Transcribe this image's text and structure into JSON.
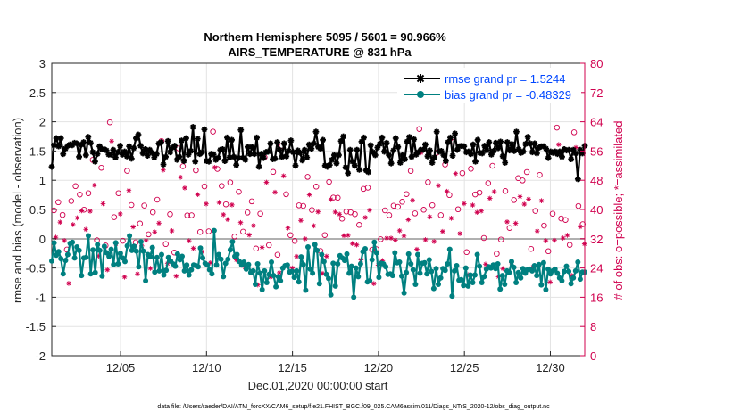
{
  "chart_data": {
    "type": "line",
    "title": "Northern Hemisphere 5095 / 5601 = 90.966%",
    "subtitle": "AIRS_TEMPERATURE @ 831 hPa",
    "xlabel": "Dec.01,2020 00:00:00 start",
    "ylabel": "rmse and bias (model - observation)",
    "y2label": "# of obs: o=possible; *=assimilated",
    "footer": "data file: /Users/raeder/DAI/ATM_forcXX/CAM6_setup/f.e21.FHIST_BGC.f09_025.CAM6assim.011/Diags_NTrS_2020-12/obs_diag_output.nc",
    "xlim": [
      1,
      32
    ],
    "ylim": [
      -2,
      3
    ],
    "y2lim": [
      0,
      80
    ],
    "grid": true,
    "legend_position": "top-right",
    "x_ticks": [
      5,
      10,
      15,
      20,
      25,
      30
    ],
    "x_tick_labels": [
      "12/05",
      "12/10",
      "12/15",
      "12/20",
      "12/25",
      "12/30"
    ],
    "y_ticks": [
      -2,
      -1.5,
      -1,
      -0.5,
      0,
      0.5,
      1,
      1.5,
      2,
      2.5,
      3
    ],
    "y_tick_labels": [
      "-2",
      "-1.5",
      "-1",
      "-0.5",
      "0",
      "0.5",
      "1",
      "1.5",
      "2",
      "2.5",
      "3"
    ],
    "y2_ticks": [
      0,
      8,
      16,
      24,
      32,
      40,
      48,
      56,
      64,
      72,
      80
    ],
    "y2_tick_labels": [
      "0",
      "8",
      "16",
      "24",
      "32",
      "40",
      "48",
      "56",
      "64",
      "72",
      "80"
    ],
    "series": [
      {
        "name": "rmse grand pr = 1.5244",
        "color": "#000000",
        "marker": "star",
        "values": [
          1.23,
          1.6,
          1.72,
          1.58,
          1.72,
          1.45,
          1.54,
          1.59,
          1.61,
          1.6,
          1.64,
          1.63,
          1.4,
          1.61,
          1.65,
          1.43,
          1.74,
          1.64,
          1.48,
          1.32,
          1.45,
          1.58,
          1.53,
          1.53,
          1.51,
          1.44,
          1.44,
          1.52,
          1.39,
          1.48,
          1.59,
          1.44,
          1.49,
          1.41,
          1.58,
          1.37,
          1.55,
          1.72,
          1.78,
          1.59,
          1.46,
          1.53,
          1.42,
          1.52,
          1.47,
          1.39,
          1.45,
          1.63,
          1.65,
          1.27,
          1.4,
          1.67,
          1.48,
          1.56,
          1.59,
          1.35,
          1.4,
          1.68,
          1.33,
          1.72,
          1.44,
          1.5,
          1.91,
          1.32,
          1.71,
          1.45,
          1.48,
          1.87,
          1.33,
          1.32,
          1.45,
          1.44,
          1.35,
          1.38,
          1.52,
          1.53,
          1.33,
          1.73,
          1.39,
          1.69,
          1.4,
          1.26,
          1.38,
          1.86,
          1.38,
          1.35,
          1.57,
          1.45,
          1.57,
          1.45,
          1.73,
          1.23,
          1.45,
          1.38,
          1.48,
          1.49,
          1.63,
          1.36,
          1.37,
          1.65,
          1.52,
          1.4,
          1.63,
          1.41,
          1.5,
          1.68,
          1.48,
          1.25,
          1.51,
          1.47,
          1.34,
          1.52,
          1.39,
          1.61,
          1.54,
          1.63,
          1.83,
          1.57,
          1.54,
          1.69,
          1.25,
          1.23,
          1.26,
          1.35,
          1.43,
          1.29,
          1.43,
          1.67,
          1.75,
          1.22,
          1.12,
          1.52,
          1.32,
          1.25,
          1.52,
          1.18,
          1.66,
          1.73,
          1.17,
          1.14,
          1.6,
          1.48,
          1.43,
          1.56,
          1.62,
          1.73,
          1.49,
          1.64,
          1.43,
          1.29,
          1.51,
          1.72,
          1.57,
          1.3,
          1.43,
          1.36,
          1.66,
          1.74,
          1.4,
          1.7,
          1.44,
          1.48,
          1.52,
          1.52,
          1.61,
          1.41,
          1.51,
          1.3,
          1.39,
          1.83,
          1.49,
          1.5,
          1.43,
          1.33,
          1.65,
          1.73,
          1.42,
          1.8,
          1.52,
          1.58,
          1.59,
          1.58,
          1.48,
          1.49,
          1.45,
          1.61,
          1.32,
          1.69,
          1.47,
          1.46,
          1.59,
          1.51,
          1.65,
          1.44,
          1.5,
          1.64,
          1.55,
          1.66,
          1.41,
          1.3,
          1.65,
          1.51,
          1.62,
          1.5,
          1.83,
          1.53,
          1.47,
          1.49,
          1.62,
          1.74,
          1.63,
          1.48,
          1.63,
          1.46,
          1.56,
          1.58,
          1.58,
          1.54,
          1.38,
          1.49,
          1.47,
          1.49,
          1.45,
          1.49,
          1.4,
          1.53,
          1.51,
          1.52,
          1.36,
          1.52,
          1.46,
          1.02,
          1.52,
          1.46,
          1.59
        ]
      },
      {
        "name": "bias grand pr = -0.48329",
        "color": "#008080",
        "marker": "circle",
        "values": [
          -0.38,
          -0.07,
          -0.28,
          -0.22,
          -0.34,
          -0.6,
          -0.37,
          -0.27,
          -0.08,
          -0.06,
          -0.33,
          -0.14,
          -0.2,
          -0.63,
          -0.33,
          -0.32,
          0.05,
          -0.6,
          -0.19,
          -0.58,
          -0.1,
          -0.2,
          -0.64,
          -0.13,
          -0.24,
          -0.3,
          -0.18,
          -0.44,
          -0.07,
          -0.43,
          -0.25,
          -0.33,
          -0.39,
          -0.12,
          0.05,
          -0.2,
          -0.13,
          -0.21,
          -0.48,
          -0.05,
          -0.21,
          -0.72,
          -0.27,
          -0.31,
          -0.15,
          -0.57,
          -0.32,
          -0.55,
          -0.27,
          -0.62,
          -0.54,
          -0.32,
          -0.38,
          -0.43,
          -0.47,
          -0.26,
          -0.36,
          -0.3,
          -0.55,
          -0.45,
          -0.62,
          -0.53,
          -0.45,
          -0.46,
          -0.48,
          -0.16,
          -0.33,
          -0.42,
          -0.45,
          -0.53,
          -0.6,
          0.14,
          -0.45,
          -0.27,
          -0.35,
          -0.65,
          -0.42,
          -0.35,
          -0.19,
          -0.05,
          -0.3,
          -0.27,
          -0.39,
          -0.45,
          -0.4,
          -0.52,
          -0.44,
          -0.58,
          -0.55,
          -0.78,
          -0.43,
          -0.59,
          -0.87,
          -0.55,
          -0.75,
          -0.61,
          -0.4,
          -0.63,
          -0.82,
          -0.65,
          -0.72,
          -0.5,
          -0.46,
          -0.45,
          -0.57,
          -0.56,
          -0.66,
          -0.55,
          -0.74,
          -0.31,
          -0.44,
          -0.88,
          -0.14,
          -0.52,
          -0.59,
          -0.1,
          -0.2,
          -0.77,
          -0.27,
          -0.39,
          -0.61,
          -0.68,
          -0.96,
          -0.42,
          -0.81,
          -0.43,
          -0.29,
          -0.33,
          -0.37,
          -0.26,
          -0.59,
          -0.47,
          -1.0,
          -0.5,
          -0.65,
          -0.43,
          -0.22,
          -0.17,
          -0.74,
          -0.72,
          -0.36,
          -0.06,
          -0.24,
          -0.66,
          -0.42,
          -0.43,
          -0.48,
          -0.61,
          -0.6,
          -0.63,
          -0.24,
          -0.41,
          -0.4,
          -0.64,
          -0.93,
          -0.58,
          -0.26,
          -0.43,
          -0.53,
          -0.78,
          -0.27,
          -0.59,
          -0.42,
          -0.41,
          -0.6,
          -0.36,
          -0.56,
          -0.85,
          -0.51,
          -0.78,
          -0.67,
          -0.51,
          -0.54,
          -0.43,
          -0.18,
          -0.98,
          -0.55,
          -0.46,
          -0.71,
          -0.7,
          -0.8,
          -0.5,
          -0.81,
          -0.62,
          -0.75,
          -0.62,
          -0.27,
          -0.47,
          -0.75,
          -0.65,
          -0.52,
          -0.48,
          -0.5,
          -0.45,
          -0.51,
          -0.43,
          -0.86,
          -0.63,
          -0.78,
          -0.55,
          -0.58,
          -0.39,
          -0.49,
          -0.75,
          -0.58,
          -0.67,
          -0.51,
          -0.59,
          -0.53,
          -0.52,
          -0.55,
          -0.46,
          -0.63,
          -0.44,
          -0.79,
          -0.41,
          -0.87,
          -0.52,
          -0.6,
          -0.55,
          -0.52,
          -0.59,
          -0.67,
          -0.72,
          -0.56,
          -0.47,
          -0.56,
          -0.77,
          -0.67,
          -0.55,
          -0.4,
          -0.69,
          -0.57,
          -0.57
        ]
      }
    ]
  },
  "colors": {
    "possible": "#d0004e",
    "assimilated": "#d0004e",
    "zero_line": "#b0b0b0"
  }
}
